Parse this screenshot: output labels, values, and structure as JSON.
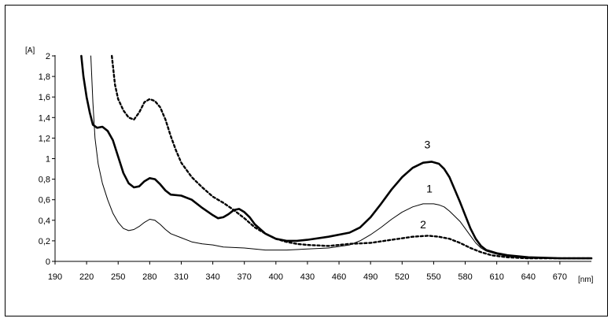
{
  "chart_data": {
    "type": "line",
    "ylabel": "[A]",
    "xlabel": "[nm]",
    "xlim": [
      190,
      700
    ],
    "ylim": [
      0,
      2
    ],
    "grid": false,
    "legend": "none",
    "x_ticks": [
      "190",
      "220",
      "250",
      "280",
      "310",
      "340",
      "370",
      "400",
      "430",
      "460",
      "490",
      "520",
      "550",
      "580",
      "610",
      "640",
      "670"
    ],
    "y_ticks": [
      "0",
      "0,2",
      "0,4",
      "0,6",
      "0,8",
      "1",
      "1,2",
      "1,4",
      "1,6",
      "1,8",
      "2"
    ],
    "series": [
      {
        "label": "1",
        "color": "#000000",
        "style": "thin",
        "label_pos": [
          546,
          0.67
        ],
        "points": [
          [
            224,
            2
          ],
          [
            226,
            1.55
          ],
          [
            228,
            1.2
          ],
          [
            231,
            0.95
          ],
          [
            235,
            0.76
          ],
          [
            240,
            0.6
          ],
          [
            245,
            0.47
          ],
          [
            250,
            0.38
          ],
          [
            255,
            0.32
          ],
          [
            260,
            0.3
          ],
          [
            265,
            0.31
          ],
          [
            270,
            0.34
          ],
          [
            275,
            0.38
          ],
          [
            280,
            0.41
          ],
          [
            285,
            0.4
          ],
          [
            290,
            0.36
          ],
          [
            295,
            0.31
          ],
          [
            300,
            0.27
          ],
          [
            310,
            0.23
          ],
          [
            320,
            0.19
          ],
          [
            330,
            0.17
          ],
          [
            340,
            0.16
          ],
          [
            350,
            0.14
          ],
          [
            370,
            0.13
          ],
          [
            390,
            0.11
          ],
          [
            410,
            0.11
          ],
          [
            430,
            0.12
          ],
          [
            450,
            0.13
          ],
          [
            470,
            0.16
          ],
          [
            480,
            0.2
          ],
          [
            490,
            0.26
          ],
          [
            500,
            0.33
          ],
          [
            510,
            0.41
          ],
          [
            520,
            0.48
          ],
          [
            530,
            0.53
          ],
          [
            540,
            0.56
          ],
          [
            550,
            0.56
          ],
          [
            555,
            0.55
          ],
          [
            560,
            0.53
          ],
          [
            565,
            0.49
          ],
          [
            570,
            0.44
          ],
          [
            575,
            0.39
          ],
          [
            580,
            0.32
          ],
          [
            585,
            0.25
          ],
          [
            590,
            0.18
          ],
          [
            595,
            0.13
          ],
          [
            600,
            0.1
          ],
          [
            610,
            0.07
          ],
          [
            620,
            0.05
          ],
          [
            640,
            0.03
          ],
          [
            670,
            0.03
          ],
          [
            700,
            0.03
          ]
        ]
      },
      {
        "label": "2",
        "color": "#000000",
        "style": "dotted",
        "label_pos": [
          540,
          0.32
        ],
        "points": [
          [
            244,
            2
          ],
          [
            247,
            1.72
          ],
          [
            250,
            1.58
          ],
          [
            255,
            1.47
          ],
          [
            260,
            1.4
          ],
          [
            265,
            1.38
          ],
          [
            270,
            1.45
          ],
          [
            275,
            1.55
          ],
          [
            280,
            1.58
          ],
          [
            285,
            1.56
          ],
          [
            290,
            1.5
          ],
          [
            295,
            1.38
          ],
          [
            300,
            1.22
          ],
          [
            305,
            1.08
          ],
          [
            310,
            0.96
          ],
          [
            320,
            0.82
          ],
          [
            330,
            0.72
          ],
          [
            340,
            0.63
          ],
          [
            350,
            0.57
          ],
          [
            360,
            0.5
          ],
          [
            370,
            0.42
          ],
          [
            380,
            0.33
          ],
          [
            390,
            0.27
          ],
          [
            400,
            0.22
          ],
          [
            410,
            0.19
          ],
          [
            420,
            0.17
          ],
          [
            430,
            0.16
          ],
          [
            450,
            0.15
          ],
          [
            470,
            0.17
          ],
          [
            490,
            0.18
          ],
          [
            510,
            0.21
          ],
          [
            530,
            0.24
          ],
          [
            545,
            0.25
          ],
          [
            555,
            0.24
          ],
          [
            565,
            0.22
          ],
          [
            575,
            0.18
          ],
          [
            585,
            0.13
          ],
          [
            595,
            0.09
          ],
          [
            605,
            0.06
          ],
          [
            620,
            0.04
          ],
          [
            640,
            0.03
          ],
          [
            670,
            0.03
          ],
          [
            700,
            0.03
          ]
        ]
      },
      {
        "label": "3",
        "color": "#000000",
        "style": "thick",
        "label_pos": [
          544,
          1.1
        ],
        "points": [
          [
            215,
            2
          ],
          [
            217,
            1.8
          ],
          [
            220,
            1.6
          ],
          [
            223,
            1.45
          ],
          [
            226,
            1.33
          ],
          [
            230,
            1.3
          ],
          [
            235,
            1.31
          ],
          [
            240,
            1.27
          ],
          [
            245,
            1.18
          ],
          [
            250,
            1.02
          ],
          [
            255,
            0.86
          ],
          [
            260,
            0.76
          ],
          [
            265,
            0.72
          ],
          [
            270,
            0.73
          ],
          [
            275,
            0.78
          ],
          [
            280,
            0.81
          ],
          [
            285,
            0.8
          ],
          [
            290,
            0.75
          ],
          [
            295,
            0.69
          ],
          [
            300,
            0.65
          ],
          [
            310,
            0.64
          ],
          [
            320,
            0.6
          ],
          [
            330,
            0.52
          ],
          [
            340,
            0.45
          ],
          [
            345,
            0.42
          ],
          [
            350,
            0.43
          ],
          [
            355,
            0.46
          ],
          [
            360,
            0.5
          ],
          [
            365,
            0.51
          ],
          [
            370,
            0.48
          ],
          [
            375,
            0.43
          ],
          [
            380,
            0.36
          ],
          [
            390,
            0.27
          ],
          [
            400,
            0.22
          ],
          [
            410,
            0.2
          ],
          [
            420,
            0.2
          ],
          [
            430,
            0.21
          ],
          [
            450,
            0.24
          ],
          [
            470,
            0.28
          ],
          [
            480,
            0.33
          ],
          [
            490,
            0.43
          ],
          [
            500,
            0.56
          ],
          [
            510,
            0.7
          ],
          [
            520,
            0.82
          ],
          [
            530,
            0.91
          ],
          [
            540,
            0.96
          ],
          [
            548,
            0.97
          ],
          [
            555,
            0.95
          ],
          [
            560,
            0.9
          ],
          [
            565,
            0.82
          ],
          [
            570,
            0.7
          ],
          [
            575,
            0.58
          ],
          [
            580,
            0.45
          ],
          [
            585,
            0.32
          ],
          [
            590,
            0.22
          ],
          [
            595,
            0.15
          ],
          [
            600,
            0.11
          ],
          [
            610,
            0.08
          ],
          [
            620,
            0.06
          ],
          [
            640,
            0.04
          ],
          [
            670,
            0.03
          ],
          [
            700,
            0.03
          ]
        ]
      }
    ]
  }
}
